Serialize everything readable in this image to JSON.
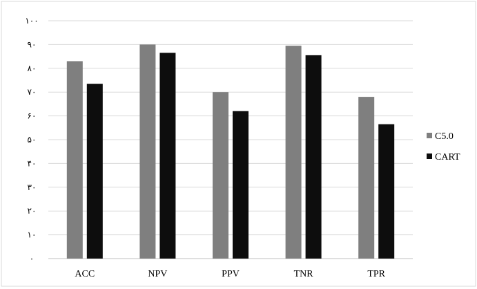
{
  "chart_data": {
    "type": "bar",
    "categories": [
      "ACC",
      "NPV",
      "PPV",
      "TNR",
      "TPR"
    ],
    "series": [
      {
        "name": "C5.0",
        "values": [
          83,
          90,
          70,
          89.5,
          68
        ],
        "color": "#7f7f7f"
      },
      {
        "name": "CART",
        "values": [
          73.5,
          86.5,
          62,
          85.5,
          56.5
        ],
        "color": "#0d0d0d"
      }
    ],
    "yticks": [
      "۰",
      "۱۰",
      "۲۰",
      "۳۰",
      "۴۰",
      "۵۰",
      "۶۰",
      "۷۰",
      "۸۰",
      "۹۰",
      "۱۰۰"
    ],
    "ylim": [
      0,
      100
    ],
    "grid": true,
    "legend_position": "right",
    "title": "",
    "xlabel": "",
    "ylabel": ""
  }
}
